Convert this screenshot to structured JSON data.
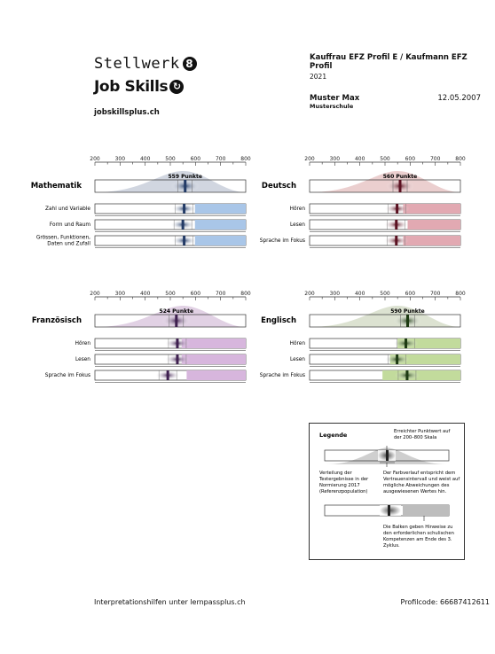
{
  "header": {
    "brand_name": "Stellwerk",
    "brand_badge": "8",
    "product": "Job Skills",
    "product_badge": "↻",
    "website": "jobskillsplus.ch"
  },
  "profile": {
    "title": "Kauffrau EFZ Profil E / Kaufmann EFZ Profil",
    "year": "2021",
    "name": "Muster Max",
    "school": "Musterschule",
    "date": "12.05.2007"
  },
  "scale": {
    "min": 200,
    "max": 800,
    "tick_labels": [
      "200",
      "300",
      "400",
      "500",
      "600",
      "700",
      "800"
    ]
  },
  "subjects": [
    {
      "title": "Mathematik",
      "score": 559,
      "score_label": "559 Punkte",
      "color": "#a9c6e8",
      "dark": "#223a66",
      "curve": "#c6ccd8",
      "rows": [
        {
          "label": "Zahl und Variable",
          "value": 555,
          "bar_from": 598
        },
        {
          "label": "Form und Raum",
          "value": 550,
          "bar_from": 598
        },
        {
          "label": "Grössen, Funktionen, Daten und Zufall",
          "value": 555,
          "bar_from": 598
        }
      ]
    },
    {
      "title": "Deutsch",
      "score": 560,
      "score_label": "560 Punkte",
      "color": "#e2a9b2",
      "dark": "#5a1020",
      "curve": "#e6c3c3",
      "rows": [
        {
          "label": "Hören",
          "value": 548,
          "bar_from": 572
        },
        {
          "label": "Lesen",
          "value": 545,
          "bar_from": 590
        },
        {
          "label": "Sprache im Fokus",
          "value": 545,
          "bar_from": 572
        }
      ]
    },
    {
      "title": "Französisch",
      "score": 524,
      "score_label": "524 Punkte",
      "color": "#d7b6dd",
      "dark": "#3e1f4f",
      "curve": "#d9c6dd",
      "rows": [
        {
          "label": "Hören",
          "value": 528,
          "bar_from": 545
        },
        {
          "label": "Lesen",
          "value": 528,
          "bar_from": 545
        },
        {
          "label": "Sprache im Fokus",
          "value": 490,
          "bar_from": 565
        }
      ]
    },
    {
      "title": "Englisch",
      "score": 590,
      "score_label": "590 Punkte",
      "color": "#c2db9c",
      "dark": "#1d3a12",
      "curve": "#d3dbc6",
      "rows": [
        {
          "label": "Hören",
          "value": 583,
          "bar_from": 550
        },
        {
          "label": "Lesen",
          "value": 548,
          "bar_from": 520
        },
        {
          "label": "Sprache im Fokus",
          "value": 588,
          "bar_from": 490
        }
      ]
    }
  ],
  "legend": {
    "title": "Legende",
    "note_score": "Erreichter Punktwert auf der 200–800 Skala",
    "note_distribution": "Verteilung der Testergebnisse in der Normierung 2017 (Referenzpopulation)",
    "note_gradient": "Der Farbverlauf entspricht dem Vertrauensintervall und weist auf mögliche Abweichungen des ausgewiesenen Wertes hin.",
    "note_bars": "Die Balken geben Hinweise zu den erforderlichen schulischen Kompetenzen am Ende des 3. Zyklus."
  },
  "footer": {
    "help_text": "Interpretationshilfen unter lernpassplus.ch",
    "profile_code": "Profilcode: 66687412611"
  }
}
